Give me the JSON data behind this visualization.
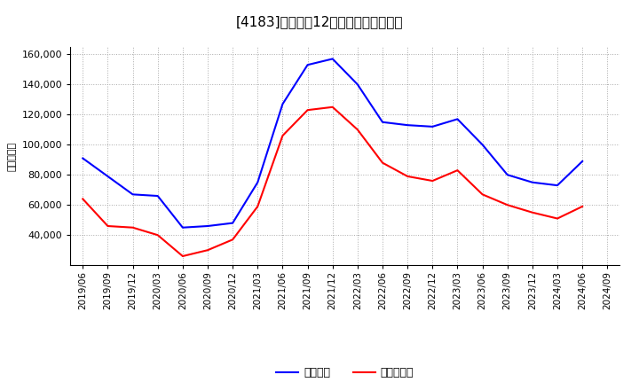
{
  "title": "[4183]　利益の12か月移動合計の推移",
  "ylabel": "（百万円）",
  "line1_label": "経常利益",
  "line2_label": "当期純利益",
  "line1_color": "#0000FF",
  "line2_color": "#FF0000",
  "background_color": "#FFFFFF",
  "grid_color": "#AAAAAA",
  "ylim": [
    20000,
    165000
  ],
  "yticks": [
    40000,
    60000,
    80000,
    100000,
    120000,
    140000,
    160000
  ],
  "dates": [
    "2019/06",
    "2019/09",
    "2019/12",
    "2020/03",
    "2020/06",
    "2020/09",
    "2020/12",
    "2021/03",
    "2021/06",
    "2021/09",
    "2021/12",
    "2022/03",
    "2022/06",
    "2022/09",
    "2022/12",
    "2023/03",
    "2023/06",
    "2023/09",
    "2023/12",
    "2024/03",
    "2024/06",
    "2024/09"
  ],
  "line1_values": [
    91000,
    79000,
    67000,
    66000,
    45000,
    46000,
    48000,
    75000,
    127000,
    153000,
    157000,
    140000,
    115000,
    113000,
    112000,
    117000,
    100000,
    80000,
    75000,
    73000,
    89000,
    null
  ],
  "line2_values": [
    64000,
    46000,
    45000,
    40000,
    26000,
    30000,
    37000,
    59000,
    106000,
    123000,
    125000,
    110000,
    88000,
    79000,
    76000,
    83000,
    67000,
    60000,
    55000,
    51000,
    59000,
    null
  ]
}
